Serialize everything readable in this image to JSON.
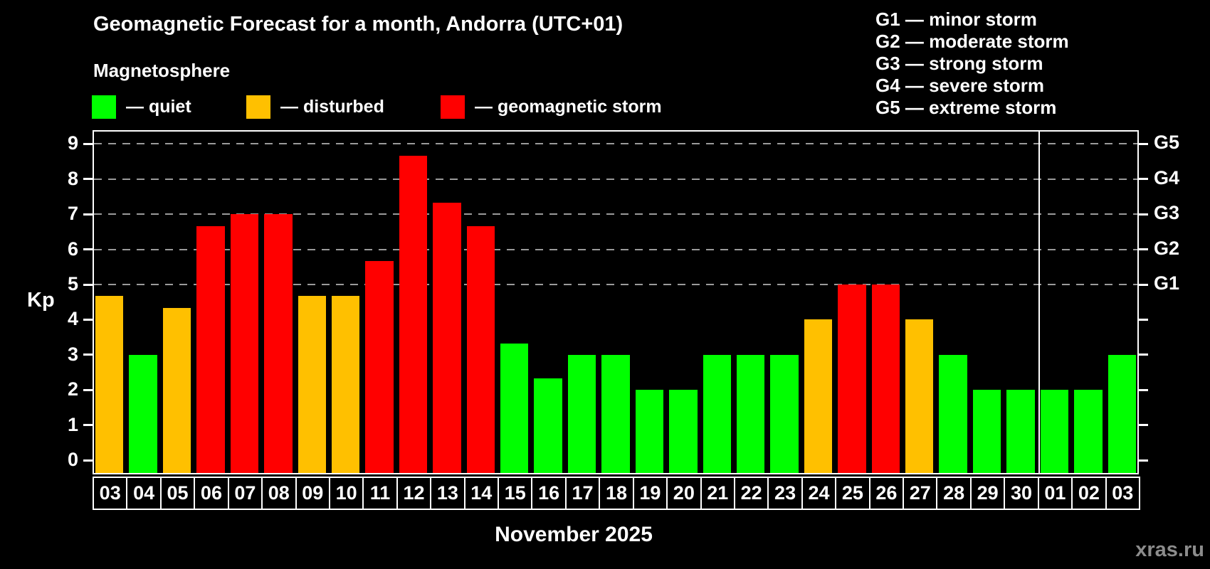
{
  "header": {
    "title": "Geomagnetic Forecast for a month, Andorra (UTC+01)",
    "subtitle": "Magnetosphere"
  },
  "legend": {
    "items": [
      {
        "key": "quiet",
        "label": "— quiet",
        "color": "#00ff00"
      },
      {
        "key": "disturbed",
        "label": "— disturbed",
        "color": "#ffc000"
      },
      {
        "key": "storm",
        "label": "— geomagnetic storm",
        "color": "#ff0000"
      }
    ]
  },
  "storm_scale_legend": [
    "G1 — minor storm",
    "G2 — moderate storm",
    "G3 — strong storm",
    "G4 — severe storm",
    "G5 — extreme storm"
  ],
  "watermark": "xras.ru",
  "chart_data": {
    "type": "bar",
    "title": "Geomagnetic Forecast for a month, Andorra (UTC+01)",
    "subtitle": "Magnetosphere",
    "xlabel": "November 2025",
    "ylabel": "Kp",
    "ylim": [
      0,
      9
    ],
    "yticks": [
      0,
      1,
      2,
      3,
      4,
      5,
      6,
      7,
      8,
      9
    ],
    "grid_kp_levels": [
      5,
      6,
      7,
      8,
      9
    ],
    "right_axis_labels": [
      {
        "label": "G1",
        "kp": 5
      },
      {
        "label": "G2",
        "kp": 6
      },
      {
        "label": "G3",
        "kp": 7
      },
      {
        "label": "G4",
        "kp": 8
      },
      {
        "label": "G5",
        "kp": 9
      }
    ],
    "categories": [
      "03",
      "04",
      "05",
      "06",
      "07",
      "08",
      "09",
      "10",
      "11",
      "12",
      "13",
      "14",
      "15",
      "16",
      "17",
      "18",
      "19",
      "20",
      "21",
      "22",
      "23",
      "24",
      "25",
      "26",
      "27",
      "28",
      "29",
      "30",
      "01",
      "02",
      "03"
    ],
    "values": [
      4.67,
      3,
      4.33,
      6.67,
      7,
      7,
      4.67,
      4.67,
      5.67,
      8.67,
      7.33,
      6.67,
      3.33,
      2.33,
      3,
      3,
      2,
      2,
      3,
      3,
      3,
      4,
      5,
      5,
      4,
      3,
      2,
      2,
      2,
      2,
      3
    ],
    "statuses": [
      "disturbed",
      "quiet",
      "disturbed",
      "storm",
      "storm",
      "storm",
      "disturbed",
      "disturbed",
      "storm",
      "storm",
      "storm",
      "storm",
      "quiet",
      "quiet",
      "quiet",
      "quiet",
      "quiet",
      "quiet",
      "quiet",
      "quiet",
      "quiet",
      "disturbed",
      "storm",
      "storm",
      "disturbed",
      "quiet",
      "quiet",
      "quiet",
      "quiet",
      "quiet",
      "quiet"
    ],
    "month_separator_after_index": 27,
    "status_colors": {
      "quiet": "#00ff00",
      "disturbed": "#ffc000",
      "storm": "#ff0000"
    },
    "legend_position": "top-left",
    "grid": "dashed-horizontal-on-storm-levels"
  }
}
